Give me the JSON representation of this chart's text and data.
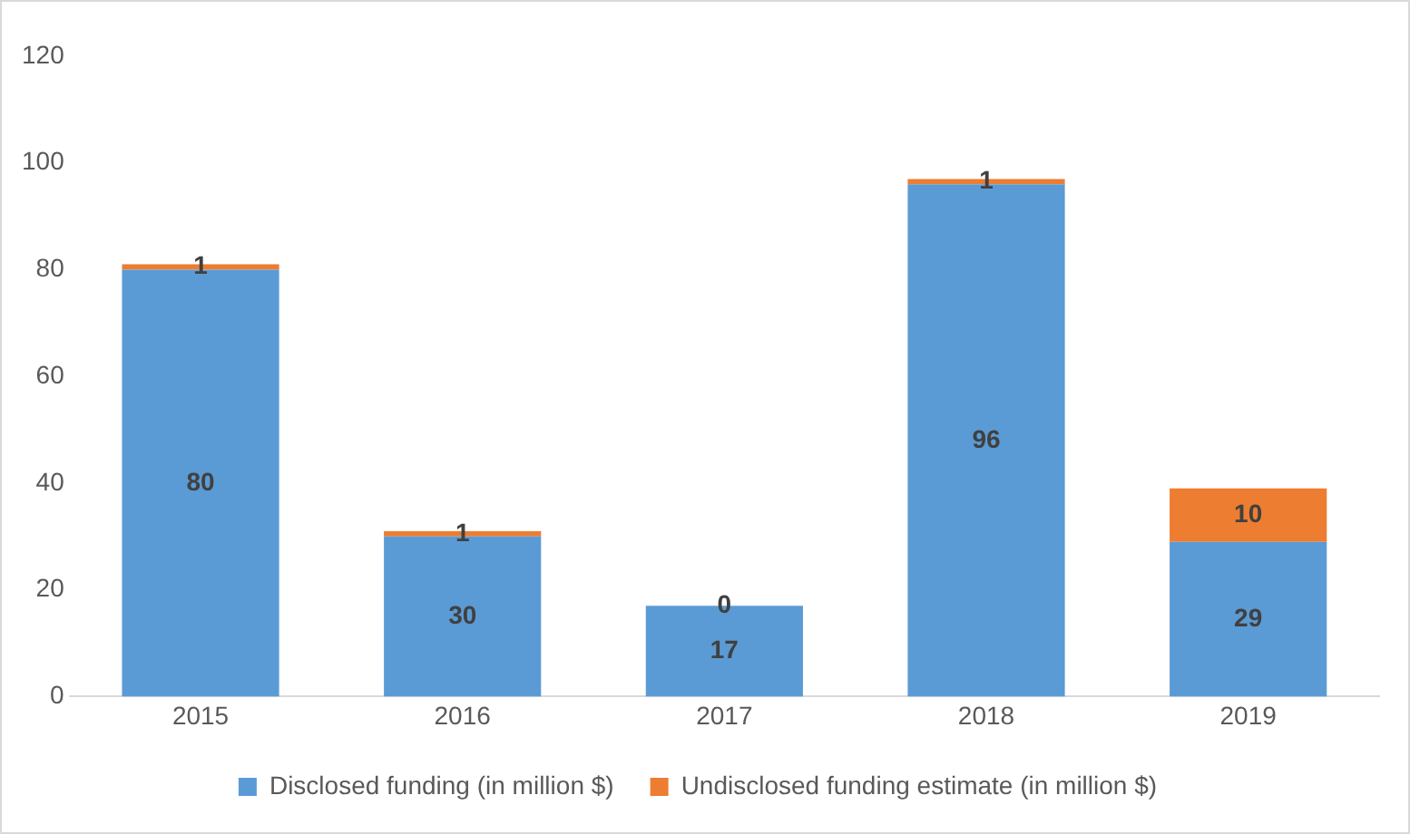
{
  "chart_data": {
    "type": "bar",
    "stacked": true,
    "categories": [
      "2015",
      "2016",
      "2017",
      "2018",
      "2019"
    ],
    "series": [
      {
        "name": "Disclosed funding (in million $)",
        "color": "#5b9bd5",
        "values": [
          80,
          30,
          17,
          96,
          29
        ]
      },
      {
        "name": "Undisclosed funding estimate (in million $)",
        "color": "#ed7d31",
        "values": [
          1,
          1,
          0,
          1,
          10
        ]
      }
    ],
    "ylim": [
      0,
      120
    ],
    "yticks": [
      0,
      20,
      40,
      60,
      80,
      100,
      120
    ],
    "grid": false,
    "legend": "bottom",
    "data_labels": true
  }
}
